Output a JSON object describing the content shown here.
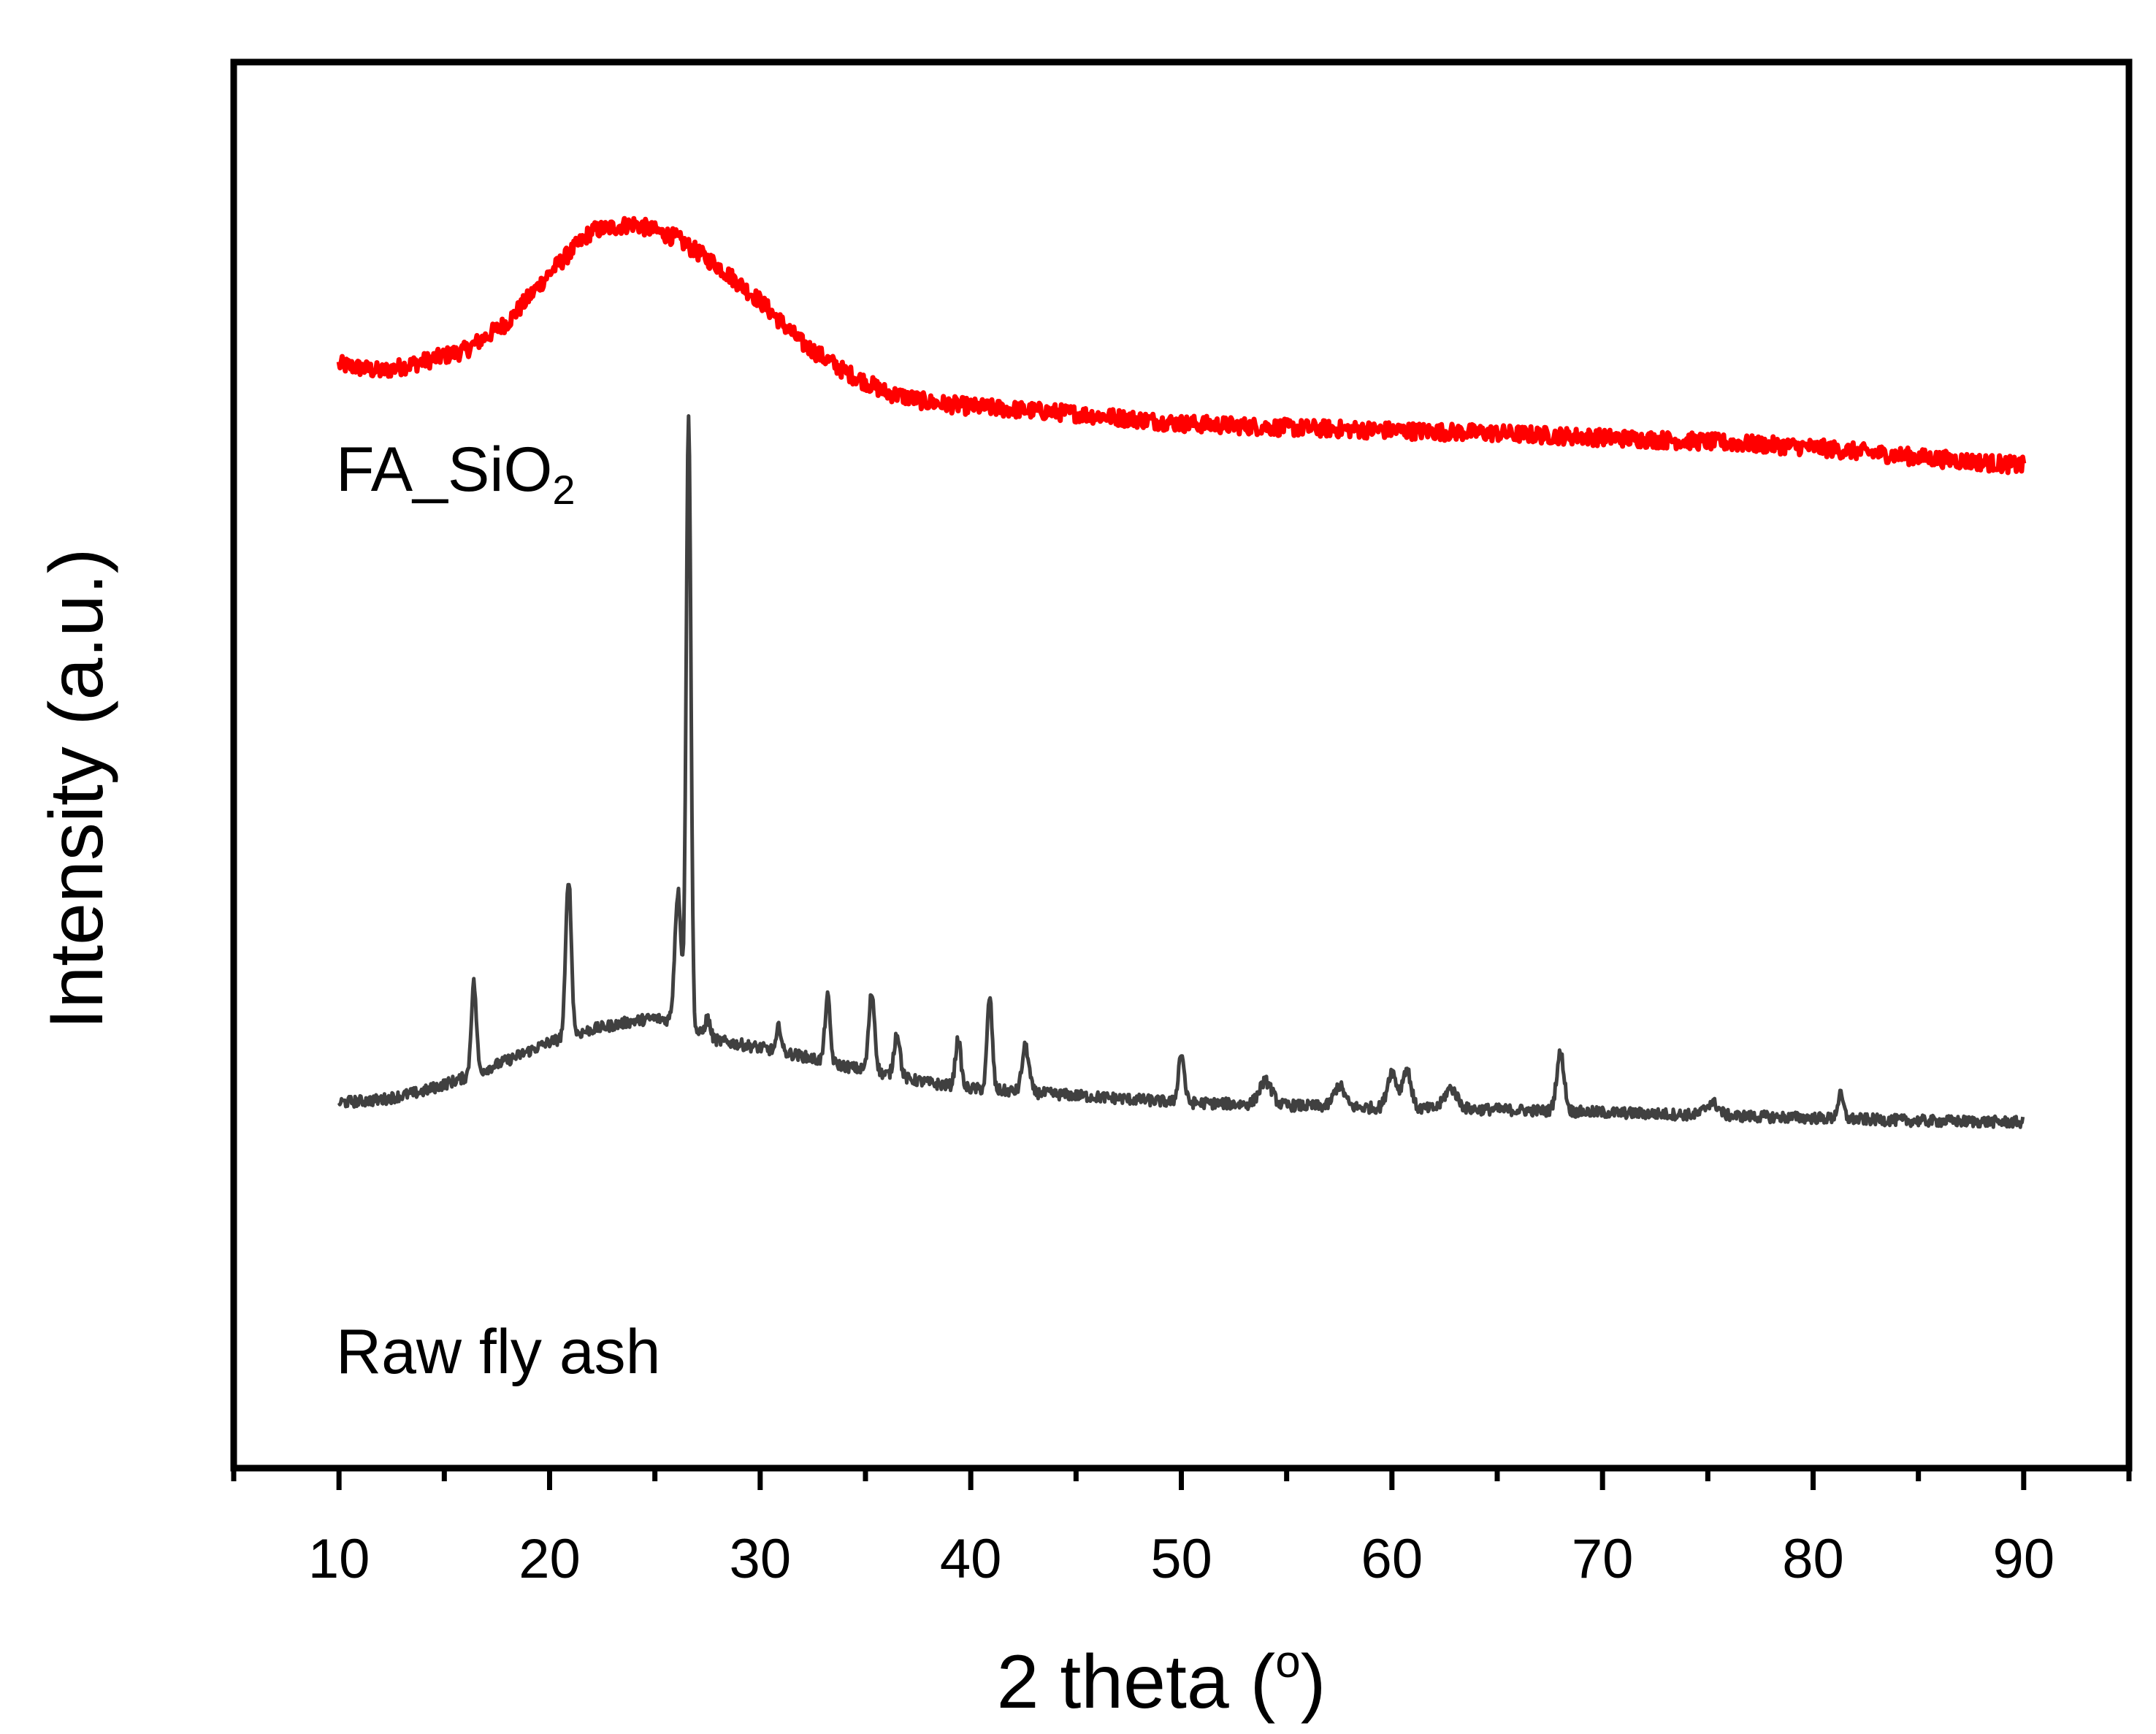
{
  "chart_data": {
    "type": "line",
    "title": "",
    "xlabel": "2 theta (",
    "xlabel_sup": "o",
    "xlabel_end": ")",
    "ylabel": "Intensity (a.u.)",
    "xlim": [
      5,
      95
    ],
    "ylim": [
      0,
      100
    ],
    "xticks": [
      10,
      20,
      30,
      40,
      50,
      60,
      70,
      80,
      90
    ],
    "xtick_labels": [
      "10",
      "20",
      "30",
      "40",
      "50",
      "60",
      "70",
      "80",
      "90"
    ],
    "yticks_shown": false,
    "grid": false,
    "series": [
      {
        "name": "FA_SiO2",
        "label_main": "FA_SiO",
        "label_sub": "2",
        "color": "#ff0000",
        "points": [
          [
            10,
            78.5
          ],
          [
            12,
            78.0
          ],
          [
            14,
            78.7
          ],
          [
            16,
            79.5
          ],
          [
            18,
            81.5
          ],
          [
            20,
            85.0
          ],
          [
            22,
            88.0
          ],
          [
            24,
            88.5
          ],
          [
            26,
            87.5
          ],
          [
            28,
            85.5
          ],
          [
            30,
            83.0
          ],
          [
            32,
            80.0
          ],
          [
            34,
            78.0
          ],
          [
            36,
            76.5
          ],
          [
            38,
            75.8
          ],
          [
            40,
            75.5
          ],
          [
            45,
            75.0
          ],
          [
            50,
            74.3
          ],
          [
            55,
            74.0
          ],
          [
            60,
            73.8
          ],
          [
            65,
            73.6
          ],
          [
            70,
            73.3
          ],
          [
            75,
            73.0
          ],
          [
            80,
            72.6
          ],
          [
            85,
            71.9
          ],
          [
            90,
            71.3
          ]
        ]
      },
      {
        "name": "Raw fly ash",
        "label_main": "Raw fly ash",
        "color": "#404040",
        "baseline": [
          [
            10,
            26.0
          ],
          [
            12,
            26.2
          ],
          [
            14,
            26.8
          ],
          [
            16,
            27.8
          ],
          [
            18,
            29.0
          ],
          [
            20,
            30.3
          ],
          [
            22,
            31.2
          ],
          [
            24,
            31.8
          ],
          [
            25,
            32.0
          ],
          [
            26,
            31.8
          ],
          [
            27,
            31.0
          ],
          [
            28,
            30.4
          ],
          [
            30,
            29.9
          ],
          [
            32,
            29.3
          ],
          [
            34,
            28.6
          ],
          [
            36,
            28.0
          ],
          [
            38,
            27.4
          ],
          [
            40,
            27.0
          ],
          [
            42,
            26.8
          ],
          [
            44,
            26.6
          ],
          [
            46,
            26.4
          ],
          [
            50,
            26.0
          ],
          [
            55,
            25.8
          ],
          [
            60,
            25.6
          ],
          [
            65,
            25.5
          ],
          [
            70,
            25.3
          ],
          [
            75,
            25.1
          ],
          [
            80,
            24.9
          ],
          [
            85,
            24.7
          ],
          [
            90,
            24.6
          ]
        ],
        "peaks": [
          [
            16.4,
            34.5,
            0.12
          ],
          [
            20.9,
            42.0,
            0.13
          ],
          [
            26.1,
            41.0,
            0.15
          ],
          [
            26.6,
            75.0,
            0.11
          ],
          [
            27.5,
            32.0,
            0.12
          ],
          [
            30.9,
            31.5,
            0.1
          ],
          [
            33.2,
            33.5,
            0.12
          ],
          [
            35.3,
            33.8,
            0.14
          ],
          [
            36.5,
            31.0,
            0.14
          ],
          [
            39.4,
            30.5,
            0.13
          ],
          [
            40.9,
            33.5,
            0.12
          ],
          [
            42.6,
            30.0,
            0.16
          ],
          [
            50.0,
            29.5,
            0.14
          ],
          [
            54.0,
            27.5,
            0.3
          ],
          [
            57.5,
            27.2,
            0.25
          ],
          [
            60.0,
            28.2,
            0.22
          ],
          [
            60.7,
            28.4,
            0.2
          ],
          [
            62.8,
            27.0,
            0.3
          ],
          [
            68.0,
            29.5,
            0.18
          ],
          [
            75.2,
            26.0,
            0.3
          ],
          [
            81.3,
            26.5,
            0.14
          ]
        ]
      }
    ]
  }
}
